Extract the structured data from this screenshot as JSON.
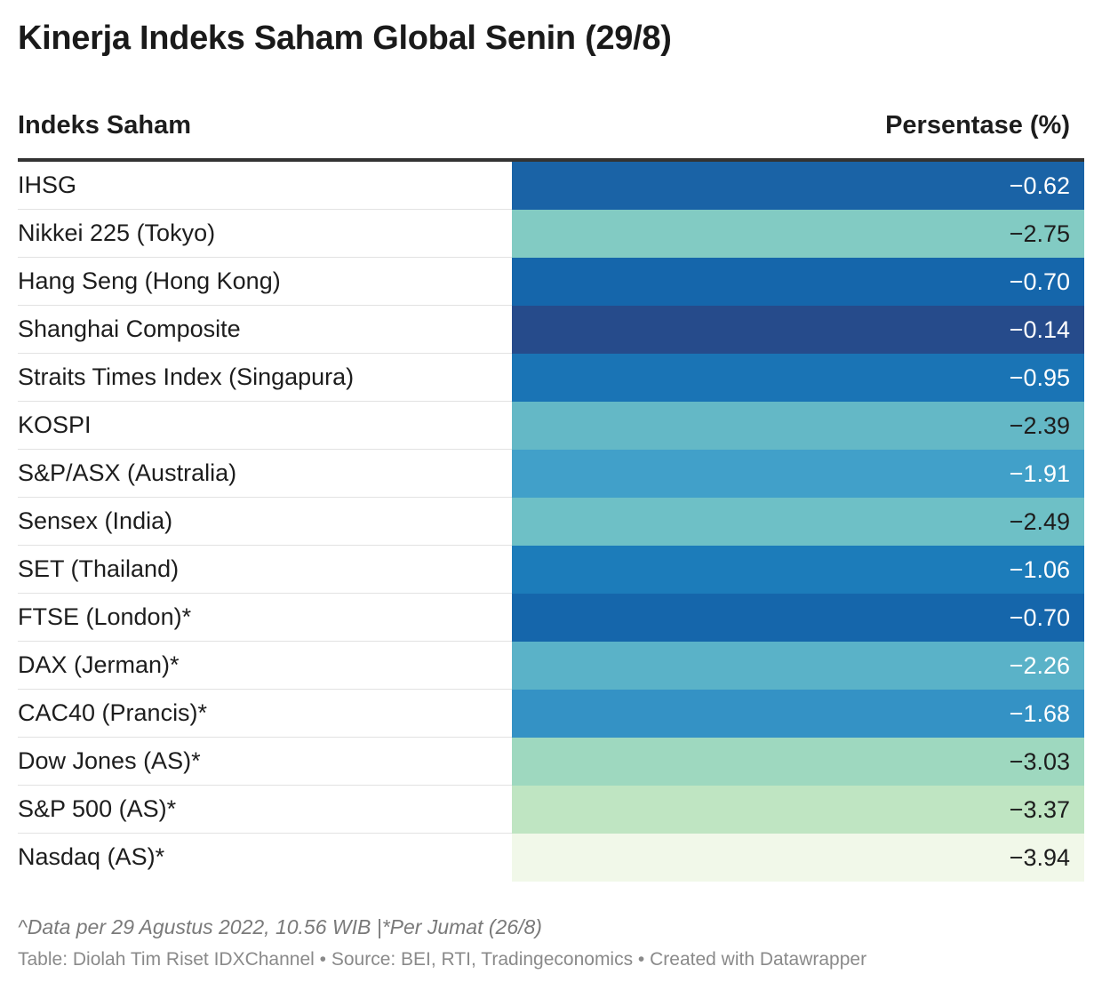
{
  "chart_data": {
    "type": "table",
    "title": "Kinerja Indeks Saham Global Senin (29/8)",
    "columns": [
      "Indeks Saham",
      "Persentase (%)"
    ],
    "rows": [
      {
        "name": "IHSG",
        "value": -0.62,
        "display": "−0.62",
        "fill": "#1a63a6",
        "text_color": "#ffffff"
      },
      {
        "name": "Nikkei 225 (Tokyo)",
        "value": -2.75,
        "display": "−2.75",
        "fill": "#82cbc3",
        "text_color": "#1d1d1d"
      },
      {
        "name": "Hang Seng (Hong Kong)",
        "value": -0.7,
        "display": "−0.70",
        "fill": "#1566ab",
        "text_color": "#ffffff"
      },
      {
        "name": "Shanghai Composite",
        "value": -0.14,
        "display": "−0.14",
        "fill": "#264b8b",
        "text_color": "#ffffff"
      },
      {
        "name": "Straits Times Index (Singapura)",
        "value": -0.95,
        "display": "−0.95",
        "fill": "#1a74b5",
        "text_color": "#ffffff"
      },
      {
        "name": "KOSPI",
        "value": -2.39,
        "display": "−2.39",
        "fill": "#64b8c6",
        "text_color": "#1d1d1d"
      },
      {
        "name": "S&P/ASX (Australia)",
        "value": -1.91,
        "display": "−1.91",
        "fill": "#41a0c9",
        "text_color": "#ffffff"
      },
      {
        "name": "Sensex (India)",
        "value": -2.49,
        "display": "−2.49",
        "fill": "#6ec0c6",
        "text_color": "#1d1d1d"
      },
      {
        "name": "SET (Thailand)",
        "value": -1.06,
        "display": "−1.06",
        "fill": "#1c7cba",
        "text_color": "#ffffff"
      },
      {
        "name": "FTSE (London)*",
        "value": -0.7,
        "display": "−0.70",
        "fill": "#1566ab",
        "text_color": "#ffffff"
      },
      {
        "name": "DAX (Jerman)*",
        "value": -2.26,
        "display": "−2.26",
        "fill": "#5ab2c8",
        "text_color": "#ffffff"
      },
      {
        "name": "CAC40 (Prancis)*",
        "value": -1.68,
        "display": "−1.68",
        "fill": "#3492c5",
        "text_color": "#ffffff"
      },
      {
        "name": "Dow Jones (AS)*",
        "value": -3.03,
        "display": "−3.03",
        "fill": "#9ed8bf",
        "text_color": "#1d1d1d"
      },
      {
        "name": "S&P 500 (AS)*",
        "value": -3.37,
        "display": "−3.37",
        "fill": "#bfe5c2",
        "text_color": "#1d1d1d"
      },
      {
        "name": "Nasdaq (AS)*",
        "value": -3.94,
        "display": "−3.94",
        "fill": "#f1f8e9",
        "text_color": "#1d1d1d"
      }
    ]
  },
  "notes": "^Data per 29 Agustus 2022, 10.56 WIB |*Per Jumat (26/8)",
  "source": "Table: Diolah Tim Riset IDXChannel • Source: BEI, RTI, Tradingeconomics • Created with Datawrapper"
}
